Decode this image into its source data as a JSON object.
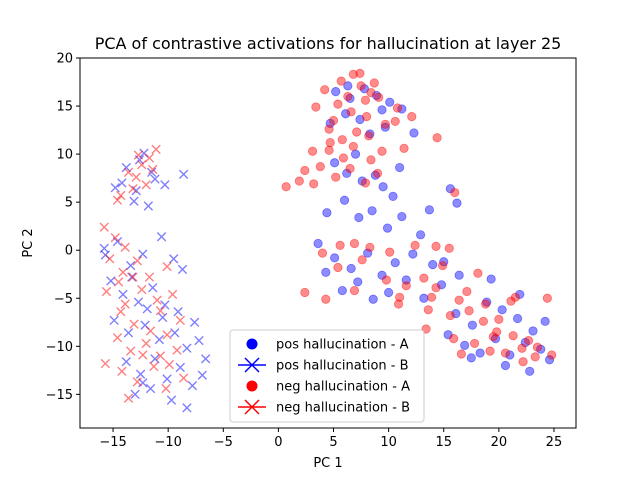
{
  "chart_data": {
    "type": "scatter",
    "title": "PCA of contrastive activations for hallucination at layer 25",
    "xlabel": "PC 1",
    "ylabel": "PC 2",
    "xlim": [
      -18,
      27
    ],
    "ylim": [
      -18.5,
      20
    ],
    "xticks": [
      -15,
      -10,
      -5,
      0,
      5,
      10,
      15,
      20,
      25
    ],
    "yticks": [
      -15,
      -10,
      -5,
      0,
      5,
      10,
      15,
      20
    ],
    "grid": false,
    "legend_position": "lower-center",
    "colors": {
      "pos": "#0000ff",
      "neg": "#ff0000"
    },
    "series": [
      {
        "name": "pos hallucination - A",
        "marker": "circle",
        "color": "#0000ff",
        "points": [
          [
            5.2,
            16.5
          ],
          [
            6.5,
            15.8
          ],
          [
            7.8,
            16.8
          ],
          [
            8.9,
            16.1
          ],
          [
            10.1,
            15.4
          ],
          [
            11.2,
            14.7
          ],
          [
            4.7,
            13.2
          ],
          [
            6.1,
            14.2
          ],
          [
            7.4,
            13.6
          ],
          [
            8.3,
            12.1
          ],
          [
            9.7,
            12.8
          ],
          [
            12.3,
            12.2
          ],
          [
            5.1,
            9.1
          ],
          [
            6.2,
            8.0
          ],
          [
            7.6,
            7.2
          ],
          [
            8.8,
            7.8
          ],
          [
            9.5,
            6.6
          ],
          [
            11.0,
            8.6
          ],
          [
            4.4,
            3.9
          ],
          [
            6.0,
            5.2
          ],
          [
            7.3,
            3.4
          ],
          [
            8.5,
            4.1
          ],
          [
            9.9,
            2.3
          ],
          [
            11.2,
            3.5
          ],
          [
            12.9,
            1.6
          ],
          [
            3.6,
            0.7
          ],
          [
            5.1,
            -0.8
          ],
          [
            6.6,
            -1.9
          ],
          [
            8.1,
            -0.3
          ],
          [
            9.4,
            -2.6
          ],
          [
            10.6,
            -1.3
          ],
          [
            12.2,
            -0.4
          ],
          [
            14.0,
            -1.5
          ],
          [
            4.3,
            -2.3
          ],
          [
            5.8,
            -4.2
          ],
          [
            7.2,
            -3.3
          ],
          [
            8.6,
            -5.1
          ],
          [
            10.0,
            -4.4
          ],
          [
            11.6,
            -3.1
          ],
          [
            13.2,
            -5.0
          ],
          [
            14.8,
            -3.6
          ],
          [
            16.4,
            -2.6
          ],
          [
            16.1,
            -6.6
          ],
          [
            17.6,
            -7.8
          ],
          [
            18.9,
            -5.4
          ],
          [
            20.3,
            -6.2
          ],
          [
            21.7,
            -7.1
          ],
          [
            23.1,
            -8.4
          ],
          [
            15.4,
            -8.8
          ],
          [
            16.9,
            -9.9
          ],
          [
            18.3,
            -10.7
          ],
          [
            19.7,
            -9.2
          ],
          [
            21.0,
            -10.9
          ],
          [
            22.4,
            -9.6
          ],
          [
            23.8,
            -10.3
          ],
          [
            24.6,
            -11.4
          ],
          [
            17.5,
            -11.2
          ],
          [
            20.6,
            -12.0
          ],
          [
            22.8,
            -12.6
          ],
          [
            6.3,
            17.1
          ],
          [
            9.4,
            14.6
          ],
          [
            7.0,
            10.0
          ],
          [
            10.4,
            5.6
          ],
          [
            15.0,
            -1.2
          ],
          [
            19.3,
            -3.0
          ],
          [
            21.9,
            -4.6
          ],
          [
            24.2,
            -7.4
          ],
          [
            13.7,
            4.2
          ],
          [
            15.6,
            6.4
          ],
          [
            16.2,
            4.9
          ]
        ]
      },
      {
        "name": "pos hallucination - B",
        "marker": "x",
        "color": "#0000ff",
        "points": [
          [
            -13.8,
            8.6
          ],
          [
            -12.6,
            9.4
          ],
          [
            -11.5,
            8.1
          ],
          [
            -14.2,
            7.0
          ],
          [
            -12.9,
            6.2
          ],
          [
            -11.2,
            7.4
          ],
          [
            -10.3,
            6.8
          ],
          [
            -8.6,
            7.9
          ],
          [
            -13.1,
            5.1
          ],
          [
            -11.8,
            4.6
          ],
          [
            -14.8,
            6.5
          ],
          [
            -12.2,
            10.1
          ],
          [
            -15.7,
            -0.5
          ],
          [
            -14.6,
            0.9
          ],
          [
            -13.4,
            -1.6
          ],
          [
            -12.3,
            -0.4
          ],
          [
            -10.6,
            1.4
          ],
          [
            -9.5,
            -0.9
          ],
          [
            -8.7,
            -2.0
          ],
          [
            -15.2,
            -3.2
          ],
          [
            -14.1,
            -4.6
          ],
          [
            -12.7,
            -5.4
          ],
          [
            -11.4,
            -3.9
          ],
          [
            -10.3,
            -5.7
          ],
          [
            -9.1,
            -6.4
          ],
          [
            -7.6,
            -7.5
          ],
          [
            -14.9,
            -7.3
          ],
          [
            -13.6,
            -8.6
          ],
          [
            -12.1,
            -7.8
          ],
          [
            -10.8,
            -9.3
          ],
          [
            -9.4,
            -8.6
          ],
          [
            -8.3,
            -10.2
          ],
          [
            -7.2,
            -9.4
          ],
          [
            -13.8,
            -11.6
          ],
          [
            -12.5,
            -12.9
          ],
          [
            -11.2,
            -11.3
          ],
          [
            -10.1,
            -13.4
          ],
          [
            -8.9,
            -12.2
          ],
          [
            -7.8,
            -14.1
          ],
          [
            -6.9,
            -13.0
          ],
          [
            -13.0,
            -15.0
          ],
          [
            -11.6,
            -14.4
          ],
          [
            -9.7,
            -15.6
          ],
          [
            -8.3,
            -16.4
          ],
          [
            -12.3,
            -13.8
          ],
          [
            -10.5,
            -7.0
          ],
          [
            -11.9,
            -6.1
          ],
          [
            -6.6,
            -11.3
          ],
          [
            -15.8,
            0.2
          ],
          [
            -13.3,
            -2.8
          ]
        ]
      },
      {
        "name": "neg hallucination - A",
        "marker": "circle",
        "color": "#ff0000",
        "points": [
          [
            5.7,
            17.6
          ],
          [
            6.8,
            18.3
          ],
          [
            7.5,
            17.1
          ],
          [
            8.4,
            16.4
          ],
          [
            6.3,
            16.0
          ],
          [
            5.4,
            15.2
          ],
          [
            7.9,
            15.6
          ],
          [
            9.1,
            15.9
          ],
          [
            4.2,
            16.7
          ],
          [
            6.6,
            14.4
          ],
          [
            8.0,
            13.9
          ],
          [
            10.6,
            13.4
          ],
          [
            12.1,
            13.9
          ],
          [
            3.4,
            14.9
          ],
          [
            4.6,
            12.6
          ],
          [
            7.1,
            12.3
          ],
          [
            5.8,
            11.5
          ],
          [
            14.4,
            11.7
          ],
          [
            3.1,
            10.3
          ],
          [
            4.6,
            10.4
          ],
          [
            5.9,
            9.6
          ],
          [
            6.8,
            10.8
          ],
          [
            8.4,
            9.4
          ],
          [
            9.4,
            10.3
          ],
          [
            2.4,
            8.3
          ],
          [
            3.8,
            8.7
          ],
          [
            5.2,
            7.6
          ],
          [
            6.5,
            8.5
          ],
          [
            7.9,
            7.0
          ],
          [
            9.0,
            8.0
          ],
          [
            1.9,
            7.2
          ],
          [
            0.7,
            6.6
          ],
          [
            3.2,
            6.9
          ],
          [
            4.0,
            -0.3
          ],
          [
            5.6,
            0.5
          ],
          [
            7.6,
            -1.0
          ],
          [
            9.8,
            -3.1
          ],
          [
            11.6,
            -3.7
          ],
          [
            13.2,
            -2.9
          ],
          [
            14.3,
            -3.9
          ],
          [
            13.6,
            -6.2
          ],
          [
            15.6,
            -6.8
          ],
          [
            17.3,
            -6.3
          ],
          [
            18.6,
            -7.4
          ],
          [
            19.8,
            -8.5
          ],
          [
            21.3,
            -8.9
          ],
          [
            22.7,
            -9.4
          ],
          [
            23.5,
            -10.1
          ],
          [
            15.9,
            -9.2
          ],
          [
            17.8,
            -9.7
          ],
          [
            19.2,
            -10.5
          ],
          [
            20.6,
            -10.7
          ],
          [
            22.1,
            -10.2
          ],
          [
            23.3,
            -11.1
          ],
          [
            24.8,
            -10.9
          ],
          [
            13.9,
            -4.9
          ],
          [
            16.4,
            -5.2
          ],
          [
            18.8,
            -5.6
          ],
          [
            21.5,
            -4.9
          ],
          [
            24.4,
            -5.0
          ],
          [
            16.0,
            6.0
          ],
          [
            14.3,
            0.4
          ],
          [
            15.5,
            0.2
          ],
          [
            12.4,
            0.5
          ],
          [
            10.1,
            -0.2
          ],
          [
            8.3,
            0.3
          ],
          [
            6.9,
            0.7
          ],
          [
            5.4,
            -1.8
          ],
          [
            2.4,
            -4.4
          ],
          [
            4.3,
            -5.1
          ],
          [
            6.9,
            -4.2
          ],
          [
            11.0,
            -4.9
          ],
          [
            17.1,
            -4.3
          ],
          [
            20.0,
            -7.2
          ],
          [
            22.2,
            -11.6
          ],
          [
            16.6,
            -10.8
          ],
          [
            13.4,
            -8.2
          ],
          [
            10.9,
            -5.6
          ],
          [
            19.5,
            -9.0
          ],
          [
            21.1,
            -5.3
          ],
          [
            18.1,
            -2.4
          ],
          [
            14.9,
            -1.6
          ],
          [
            4.7,
            11.2
          ],
          [
            7.4,
            18.4
          ],
          [
            8.7,
            17.4
          ],
          [
            9.7,
            13.1
          ],
          [
            11.4,
            10.6
          ],
          [
            5.0,
            13.5
          ],
          [
            8.2,
            11.9
          ],
          [
            10.8,
            14.8
          ]
        ]
      },
      {
        "name": "neg hallucination - B",
        "marker": "x",
        "color": "#ff0000",
        "points": [
          [
            -13.6,
            8.1
          ],
          [
            -12.4,
            8.9
          ],
          [
            -11.7,
            9.6
          ],
          [
            -12.9,
            7.6
          ],
          [
            -11.1,
            10.5
          ],
          [
            -12.0,
            6.8
          ],
          [
            -14.3,
            5.7
          ],
          [
            -13.2,
            6.4
          ],
          [
            -11.4,
            8.4
          ],
          [
            -14.6,
            5.2
          ],
          [
            -12.7,
            9.9
          ],
          [
            -15.8,
            2.4
          ],
          [
            -14.8,
            1.3
          ],
          [
            -13.9,
            0.3
          ],
          [
            -15.3,
            -0.9
          ],
          [
            -14.1,
            -2.3
          ],
          [
            -12.8,
            -1.1
          ],
          [
            -11.7,
            -2.8
          ],
          [
            -10.1,
            -1.7
          ],
          [
            -15.6,
            -4.3
          ],
          [
            -13.9,
            -5.6
          ],
          [
            -12.4,
            -4.1
          ],
          [
            -11.0,
            -5.2
          ],
          [
            -9.6,
            -4.6
          ],
          [
            -14.3,
            -6.4
          ],
          [
            -13.1,
            -7.7
          ],
          [
            -11.6,
            -8.4
          ],
          [
            -10.1,
            -8.8
          ],
          [
            -8.9,
            -7.3
          ],
          [
            -14.6,
            -9.1
          ],
          [
            -13.4,
            -10.5
          ],
          [
            -12.0,
            -9.7
          ],
          [
            -10.7,
            -11.0
          ],
          [
            -9.2,
            -10.4
          ],
          [
            -15.7,
            -11.8
          ],
          [
            -14.2,
            -12.6
          ],
          [
            -12.8,
            -13.7
          ],
          [
            -11.3,
            -12.1
          ],
          [
            -10.2,
            -14.4
          ],
          [
            -13.6,
            -15.4
          ],
          [
            -8.6,
            -13.3
          ],
          [
            -10.7,
            -6.3
          ],
          [
            -12.3,
            -10.9
          ],
          [
            -9.9,
            -11.9
          ],
          [
            -14.5,
            -3.3
          ],
          [
            -13.2,
            -2.8
          ]
        ]
      }
    ]
  }
}
